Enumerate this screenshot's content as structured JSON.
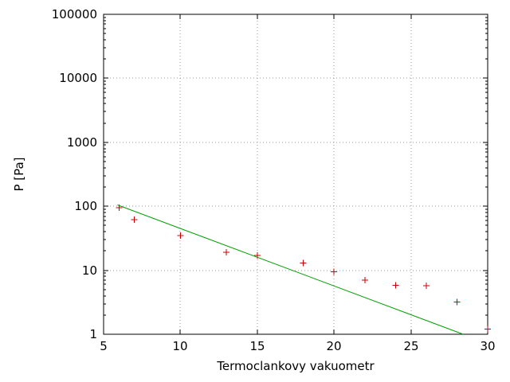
{
  "page": {
    "background": "#ffffff"
  },
  "chart_data": {
    "type": "scatter",
    "title": "",
    "xlabel": "Termoclankovy vakuometr",
    "ylabel": "P [Pa]",
    "x_scale": "linear",
    "y_scale": "log",
    "xlim": [
      5,
      30
    ],
    "ylim": [
      1,
      100000
    ],
    "x_ticks": [
      5,
      10,
      15,
      20,
      25,
      30
    ],
    "y_ticks": [
      1,
      10,
      100,
      1000,
      10000,
      100000
    ],
    "grid": true,
    "legend": "none",
    "colors": {
      "points": "#cc0000",
      "fit_line": "#00a000",
      "grid": "#9a9a9a",
      "axis": "#000000"
    },
    "series": [
      {
        "name": "measured-points",
        "style": "points",
        "marker": "plus",
        "color": "#cc0000",
        "points": [
          [
            6,
            95
          ],
          [
            7,
            62
          ],
          [
            10,
            35
          ],
          [
            13,
            19
          ],
          [
            15,
            17
          ],
          [
            18,
            13
          ],
          [
            20,
            9.5
          ],
          [
            22,
            7
          ],
          [
            24,
            5.8
          ],
          [
            26,
            5.7
          ],
          [
            28,
            3.2
          ],
          [
            30,
            1.2
          ]
        ]
      },
      {
        "name": "exponential-fit-line",
        "style": "line",
        "color": "#00a000",
        "points": [
          [
            5.9,
            105
          ],
          [
            28.4,
            1
          ]
        ]
      }
    ]
  }
}
